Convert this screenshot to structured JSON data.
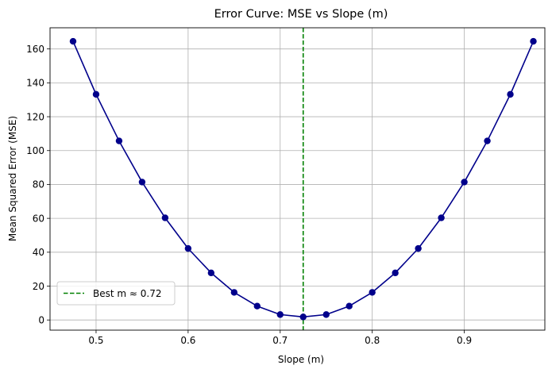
{
  "chart_data": {
    "type": "line",
    "title": "Error Curve: MSE vs Slope (m)",
    "xlabel": "Slope (m)",
    "ylabel": "Mean Squared Error (MSE)",
    "xlim": [
      0.45,
      0.9875
    ],
    "ylim": [
      -6,
      172.5
    ],
    "xticks": [
      0.5,
      0.6,
      0.7,
      0.8,
      0.9
    ],
    "xtick_labels": [
      "0.5",
      "0.6",
      "0.7",
      "0.8",
      "0.9"
    ],
    "yticks": [
      0,
      20,
      40,
      60,
      80,
      100,
      120,
      140,
      160
    ],
    "ytick_labels": [
      "0",
      "20",
      "40",
      "60",
      "80",
      "100",
      "120",
      "140",
      "160"
    ],
    "grid": true,
    "legend_position": "lower-left",
    "series": [
      {
        "color": "#00008b",
        "marker": "circle",
        "x": [
          0.475,
          0.5,
          0.525,
          0.55,
          0.575,
          0.6,
          0.625,
          0.65,
          0.675,
          0.7,
          0.725,
          0.75,
          0.775,
          0.8,
          0.825,
          0.85,
          0.875,
          0.9,
          0.925,
          0.95,
          0.975
        ],
        "y": [
          164.5,
          133.2,
          105.7,
          81.4,
          60.3,
          42.2,
          27.8,
          16.3,
          8.2,
          3.2,
          1.8,
          3.2,
          8.2,
          16.3,
          27.8,
          42.2,
          60.3,
          81.4,
          105.7,
          133.2,
          164.5
        ]
      }
    ],
    "reference_line": {
      "orientation": "vertical",
      "x": 0.725,
      "style": "dashed",
      "color": "#008000",
      "label": "Best m ≈ 0.72"
    }
  }
}
